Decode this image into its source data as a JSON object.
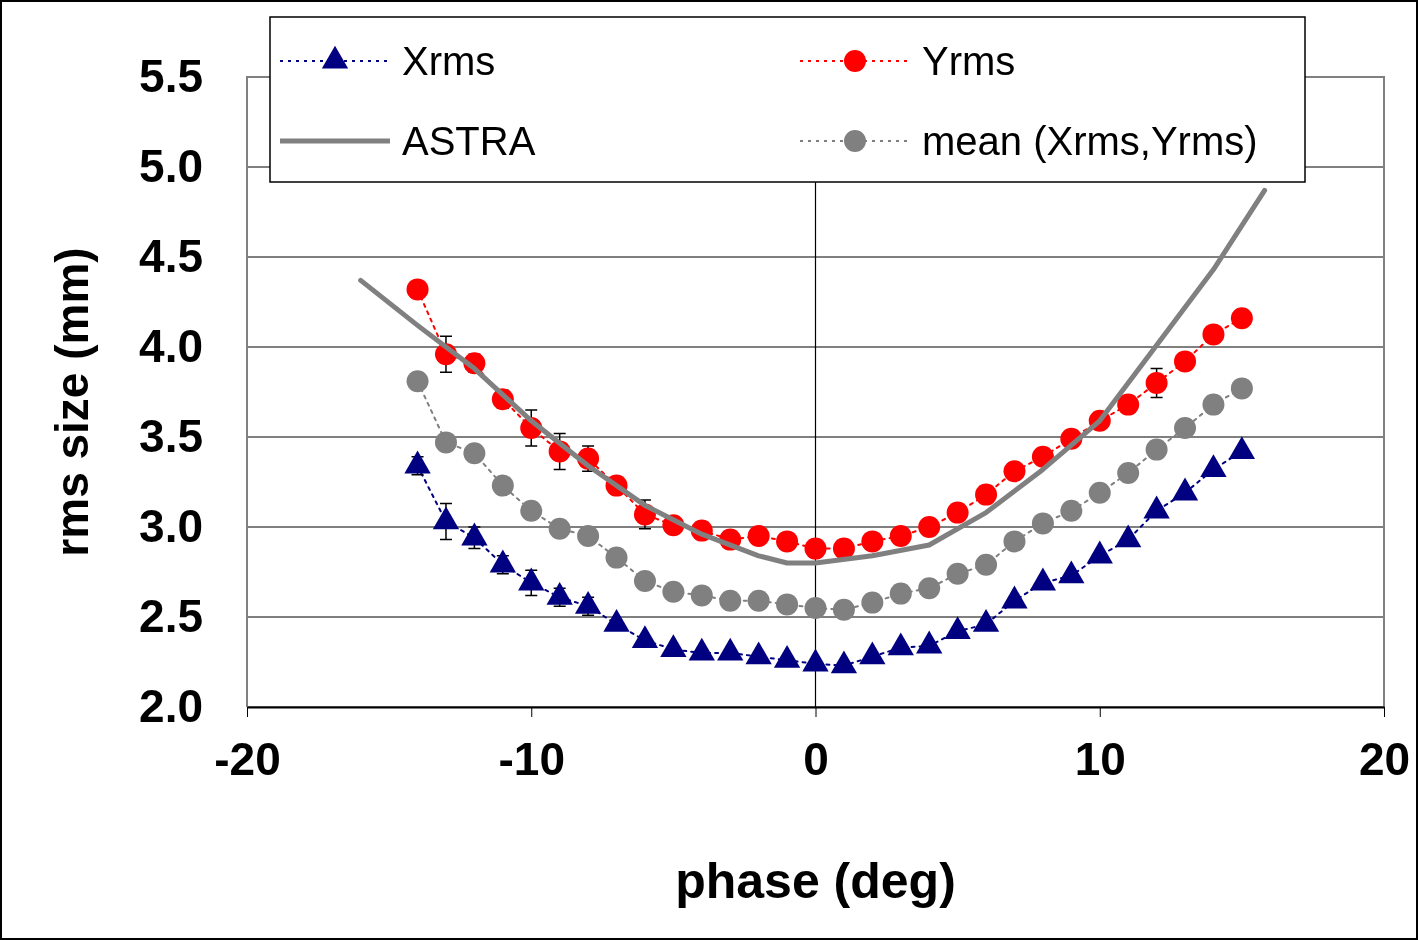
{
  "chart_data": {
    "type": "line",
    "xlabel": "phase (deg)",
    "ylabel": "rms size (mm)",
    "xlim": [
      -20,
      20
    ],
    "xticks": [
      -20,
      -10,
      0,
      10,
      20
    ],
    "ylim": [
      2.0,
      5.5
    ],
    "yticks": [
      {
        "value": 2.0,
        "label": "2.0"
      },
      {
        "value": 2.5,
        "label": "2.5"
      },
      {
        "value": 3.0,
        "label": "3.0"
      },
      {
        "value": 3.5,
        "label": "3.5"
      },
      {
        "value": 4.0,
        "label": "4.0"
      },
      {
        "value": 4.5,
        "label": "4.5"
      },
      {
        "value": 5.0,
        "label": "5.0"
      },
      {
        "value": 5.5,
        "label": "5.5"
      }
    ],
    "grid": "y",
    "legend": "top",
    "ref_lines": [
      {
        "axis": "x",
        "value": 0,
        "color": "#000000"
      }
    ],
    "series": [
      {
        "name": "Xrms",
        "color": "#000080",
        "marker": "triangle",
        "line_style": "dotted",
        "x": [
          -14,
          -13,
          -12,
          -11,
          -10,
          -9,
          -8,
          -7,
          -6,
          -5,
          -4,
          -3,
          -2,
          -1,
          0,
          1,
          2,
          3,
          4,
          5,
          6,
          7,
          8,
          9,
          10,
          11,
          12,
          13,
          14,
          15
        ],
        "values": [
          3.34,
          3.03,
          2.94,
          2.79,
          2.69,
          2.61,
          2.56,
          2.46,
          2.37,
          2.32,
          2.3,
          2.3,
          2.28,
          2.26,
          2.24,
          2.23,
          2.28,
          2.33,
          2.34,
          2.42,
          2.46,
          2.59,
          2.69,
          2.73,
          2.84,
          2.93,
          3.09,
          3.19,
          3.32,
          3.42
        ],
        "errors": [
          0.05,
          0.1,
          0.06,
          0.05,
          0.07,
          0.05,
          0.05,
          null,
          null,
          null,
          null,
          null,
          null,
          null,
          null,
          null,
          null,
          null,
          null,
          null,
          null,
          null,
          null,
          null,
          null,
          null,
          null,
          null,
          null,
          null
        ]
      },
      {
        "name": "Yrms",
        "color": "#ff0000",
        "marker": "circle",
        "line_style": "dotted",
        "x": [
          -14,
          -13,
          -12,
          -11,
          -10,
          -9,
          -8,
          -7,
          -6,
          -5,
          -4,
          -3,
          -2,
          -1,
          0,
          1,
          2,
          3,
          4,
          5,
          6,
          7,
          8,
          9,
          10,
          11,
          12,
          13,
          14,
          15
        ],
        "values": [
          4.32,
          3.96,
          3.91,
          3.71,
          3.55,
          3.42,
          3.38,
          3.23,
          3.07,
          3.01,
          2.98,
          2.93,
          2.95,
          2.92,
          2.88,
          2.88,
          2.92,
          2.95,
          3.0,
          3.08,
          3.18,
          3.31,
          3.39,
          3.49,
          3.59,
          3.68,
          3.8,
          3.92,
          4.07,
          4.16
        ],
        "errors": [
          null,
          0.1,
          0.05,
          0.05,
          0.1,
          0.1,
          0.07,
          null,
          0.08,
          null,
          null,
          null,
          null,
          null,
          null,
          null,
          null,
          null,
          null,
          null,
          null,
          null,
          null,
          null,
          null,
          null,
          0.08,
          null,
          null,
          null
        ]
      },
      {
        "name": "ASTRA",
        "color": "#808080",
        "marker": "none",
        "line_style": "solid",
        "x": [
          -16,
          -14,
          -12,
          -10,
          -8,
          -6,
          -4,
          -2,
          -1,
          0,
          2,
          4,
          6,
          8,
          10,
          12,
          14,
          15.8
        ],
        "values": [
          4.37,
          4.12,
          3.88,
          3.59,
          3.34,
          3.12,
          2.96,
          2.84,
          2.8,
          2.8,
          2.84,
          2.9,
          3.08,
          3.32,
          3.59,
          4.01,
          4.43,
          4.87
        ]
      },
      {
        "name": "mean (Xrms,Yrms)",
        "color": "#808080",
        "marker": "circle",
        "line_style": "dotted",
        "x": [
          -14,
          -13,
          -12,
          -11,
          -10,
          -9,
          -8,
          -7,
          -6,
          -5,
          -4,
          -3,
          -2,
          -1,
          0,
          1,
          2,
          3,
          4,
          5,
          6,
          7,
          8,
          9,
          10,
          11,
          12,
          13,
          14,
          15
        ],
        "values": [
          3.81,
          3.47,
          3.41,
          3.23,
          3.09,
          2.99,
          2.95,
          2.83,
          2.7,
          2.64,
          2.62,
          2.59,
          2.59,
          2.57,
          2.55,
          2.54,
          2.58,
          2.63,
          2.66,
          2.74,
          2.79,
          2.92,
          3.02,
          3.09,
          3.19,
          3.3,
          3.43,
          3.55,
          3.68,
          3.77
        ]
      }
    ]
  }
}
